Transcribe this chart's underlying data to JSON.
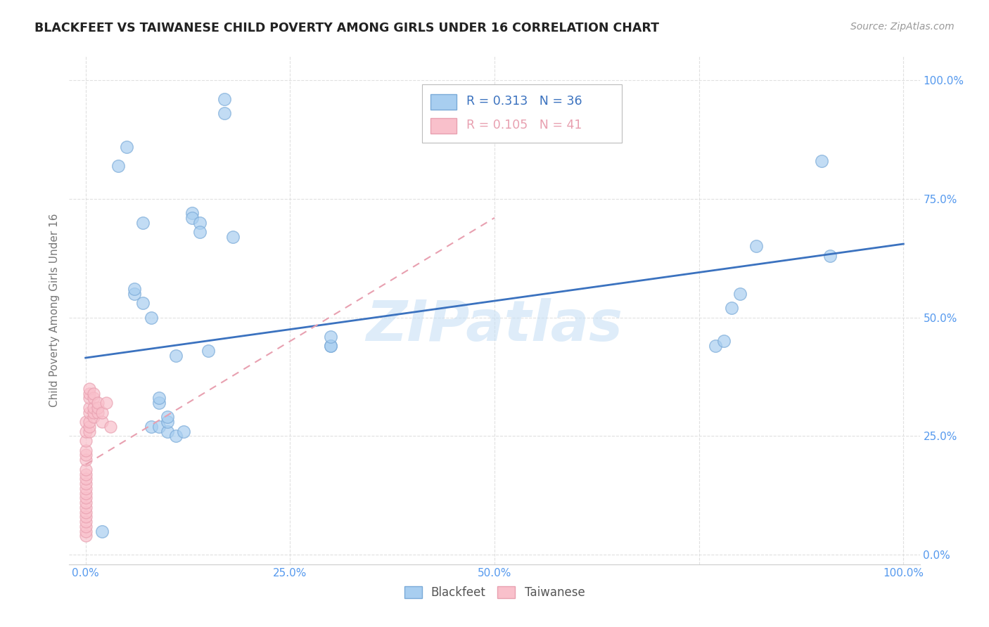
{
  "title": "BLACKFEET VS TAIWANESE CHILD POVERTY AMONG GIRLS UNDER 16 CORRELATION CHART",
  "source": "Source: ZipAtlas.com",
  "ylabel": "Child Poverty Among Girls Under 16",
  "watermark": "ZIPatlas",
  "blackfeet_r": 0.313,
  "blackfeet_n": 36,
  "taiwanese_r": 0.105,
  "taiwanese_n": 41,
  "blackfeet_color": "#A8CEF0",
  "taiwanese_color": "#F9C0CB",
  "trendline_blue": "#3B72BF",
  "trendline_pink": "#E8A0B0",
  "blackfeet_x": [
    0.02,
    0.04,
    0.05,
    0.06,
    0.06,
    0.07,
    0.07,
    0.08,
    0.08,
    0.09,
    0.09,
    0.09,
    0.1,
    0.1,
    0.1,
    0.11,
    0.11,
    0.12,
    0.13,
    0.13,
    0.14,
    0.14,
    0.15,
    0.17,
    0.17,
    0.18,
    0.3,
    0.3,
    0.3,
    0.77,
    0.78,
    0.79,
    0.8,
    0.82,
    0.9,
    0.91
  ],
  "blackfeet_y": [
    0.05,
    0.82,
    0.86,
    0.55,
    0.56,
    0.53,
    0.7,
    0.5,
    0.27,
    0.27,
    0.32,
    0.33,
    0.26,
    0.28,
    0.29,
    0.42,
    0.25,
    0.26,
    0.72,
    0.71,
    0.7,
    0.68,
    0.43,
    0.93,
    0.96,
    0.67,
    0.44,
    0.44,
    0.46,
    0.44,
    0.45,
    0.52,
    0.55,
    0.65,
    0.83,
    0.63
  ],
  "taiwanese_x": [
    0.0,
    0.0,
    0.0,
    0.0,
    0.0,
    0.0,
    0.0,
    0.0,
    0.0,
    0.0,
    0.0,
    0.0,
    0.0,
    0.0,
    0.0,
    0.0,
    0.0,
    0.0,
    0.0,
    0.0,
    0.0,
    0.005,
    0.005,
    0.005,
    0.005,
    0.005,
    0.005,
    0.005,
    0.005,
    0.01,
    0.01,
    0.01,
    0.01,
    0.01,
    0.015,
    0.015,
    0.015,
    0.02,
    0.02,
    0.025,
    0.03
  ],
  "taiwanese_y": [
    0.04,
    0.05,
    0.06,
    0.07,
    0.08,
    0.09,
    0.1,
    0.11,
    0.12,
    0.13,
    0.14,
    0.15,
    0.16,
    0.17,
    0.18,
    0.2,
    0.21,
    0.22,
    0.24,
    0.26,
    0.28,
    0.26,
    0.27,
    0.28,
    0.3,
    0.31,
    0.33,
    0.34,
    0.35,
    0.29,
    0.3,
    0.31,
    0.33,
    0.34,
    0.3,
    0.31,
    0.32,
    0.28,
    0.3,
    0.32,
    0.27
  ],
  "xlim": [
    -0.02,
    1.02
  ],
  "ylim": [
    -0.02,
    1.05
  ],
  "xticks": [
    0.0,
    0.25,
    0.5,
    0.75,
    1.0
  ],
  "xticklabels": [
    "0.0%",
    "25.0%",
    "50.0%",
    "",
    "100.0%"
  ],
  "yticks": [
    0.0,
    0.25,
    0.5,
    0.75,
    1.0
  ],
  "yticklabels": [
    "0.0%",
    "25.0%",
    "50.0%",
    "75.0%",
    "100.0%"
  ],
  "background_color": "#FFFFFF",
  "grid_color": "#DDDDDD",
  "bf_trendline_x0": 0.0,
  "bf_trendline_y0": 0.415,
  "bf_trendline_x1": 1.0,
  "bf_trendline_y1": 0.655,
  "tw_trendline_x0": 0.0,
  "tw_trendline_y0": 0.19,
  "tw_trendline_x1": 0.5,
  "tw_trendline_y1": 0.71
}
